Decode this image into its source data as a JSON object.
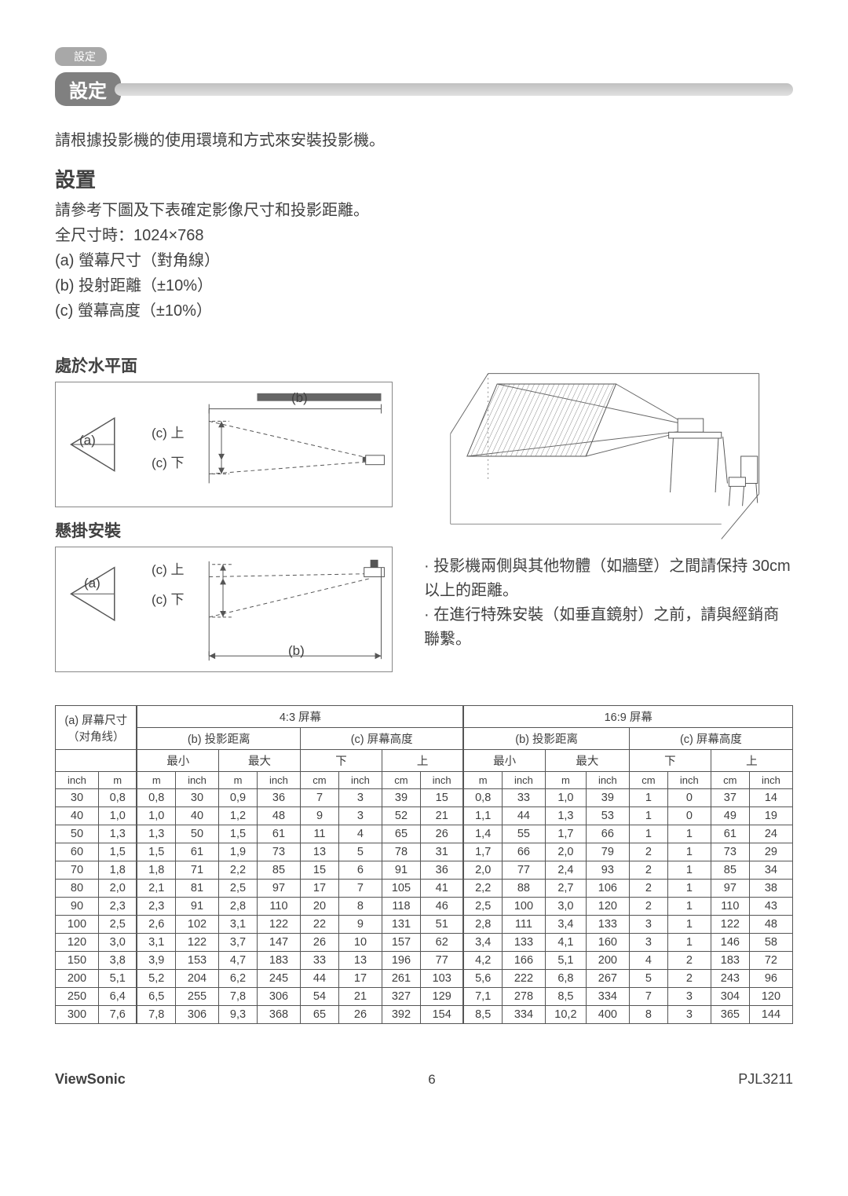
{
  "header": {
    "small_tag": "設定",
    "pill": "設定"
  },
  "intro": "請根據投影機的使用環境和方式來安裝投影機。",
  "setup": {
    "title": "設置",
    "line1": "請參考下圖及下表確定影像尺寸和投影距離。",
    "line2": "全尺寸時：1024×768",
    "a": "(a) 螢幕尺寸（對角線）",
    "b": "(b) 投射距離（±10%）",
    "c": "(c) 螢幕高度（±10%）"
  },
  "diag": {
    "horiz_title": "處於水平面",
    "hang_title": "懸掛安裝",
    "label_a": "(a)",
    "label_b": "(b)",
    "label_c_up": "(c) 上",
    "label_c_down": "(c) 下"
  },
  "notes": {
    "n1": "· 投影機兩側與其他物體（如牆壁）之間請保持 30cm 以上的距離。",
    "n2": "· 在進行特殊安裝（如垂直鏡射）之前，請與經銷商聯繫。"
  },
  "table": {
    "h_a": "(a) 屏幕尺寸（对角线）",
    "h_43": "4:3 屏幕",
    "h_169": "16:9 屏幕",
    "h_b": "(b) 投影距离",
    "h_c": "(c) 屏幕高度",
    "min": "最小",
    "max": "最大",
    "down": "下",
    "up": "上",
    "u_inch": "inch",
    "u_m": "m",
    "u_cm": "cm",
    "rows": [
      [
        "30",
        "0,8",
        "0,8",
        "30",
        "0,9",
        "36",
        "7",
        "3",
        "39",
        "15",
        "0,8",
        "33",
        "1,0",
        "39",
        "1",
        "0",
        "37",
        "14"
      ],
      [
        "40",
        "1,0",
        "1,0",
        "40",
        "1,2",
        "48",
        "9",
        "3",
        "52",
        "21",
        "1,1",
        "44",
        "1,3",
        "53",
        "1",
        "0",
        "49",
        "19"
      ],
      [
        "50",
        "1,3",
        "1,3",
        "50",
        "1,5",
        "61",
        "11",
        "4",
        "65",
        "26",
        "1,4",
        "55",
        "1,7",
        "66",
        "1",
        "1",
        "61",
        "24"
      ],
      [
        "60",
        "1,5",
        "1,5",
        "61",
        "1,9",
        "73",
        "13",
        "5",
        "78",
        "31",
        "1,7",
        "66",
        "2,0",
        "79",
        "2",
        "1",
        "73",
        "29"
      ],
      [
        "70",
        "1,8",
        "1,8",
        "71",
        "2,2",
        "85",
        "15",
        "6",
        "91",
        "36",
        "2,0",
        "77",
        "2,4",
        "93",
        "2",
        "1",
        "85",
        "34"
      ],
      [
        "80",
        "2,0",
        "2,1",
        "81",
        "2,5",
        "97",
        "17",
        "7",
        "105",
        "41",
        "2,2",
        "88",
        "2,7",
        "106",
        "2",
        "1",
        "97",
        "38"
      ],
      [
        "90",
        "2,3",
        "2,3",
        "91",
        "2,8",
        "110",
        "20",
        "8",
        "118",
        "46",
        "2,5",
        "100",
        "3,0",
        "120",
        "2",
        "1",
        "110",
        "43"
      ],
      [
        "100",
        "2,5",
        "2,6",
        "102",
        "3,1",
        "122",
        "22",
        "9",
        "131",
        "51",
        "2,8",
        "111",
        "3,4",
        "133",
        "3",
        "1",
        "122",
        "48"
      ],
      [
        "120",
        "3,0",
        "3,1",
        "122",
        "3,7",
        "147",
        "26",
        "10",
        "157",
        "62",
        "3,4",
        "133",
        "4,1",
        "160",
        "3",
        "1",
        "146",
        "58"
      ],
      [
        "150",
        "3,8",
        "3,9",
        "153",
        "4,7",
        "183",
        "33",
        "13",
        "196",
        "77",
        "4,2",
        "166",
        "5,1",
        "200",
        "4",
        "2",
        "183",
        "72"
      ],
      [
        "200",
        "5,1",
        "5,2",
        "204",
        "6,2",
        "245",
        "44",
        "17",
        "261",
        "103",
        "5,6",
        "222",
        "6,8",
        "267",
        "5",
        "2",
        "243",
        "96"
      ],
      [
        "250",
        "6,4",
        "6,5",
        "255",
        "7,8",
        "306",
        "54",
        "21",
        "327",
        "129",
        "7,1",
        "278",
        "8,5",
        "334",
        "7",
        "3",
        "304",
        "120"
      ],
      [
        "300",
        "7,6",
        "7,8",
        "306",
        "9,3",
        "368",
        "65",
        "26",
        "392",
        "154",
        "8,5",
        "334",
        "10,2",
        "400",
        "8",
        "3",
        "365",
        "144"
      ]
    ]
  },
  "footer": {
    "brand": "ViewSonic",
    "page": "6",
    "model": "PJL3211"
  }
}
